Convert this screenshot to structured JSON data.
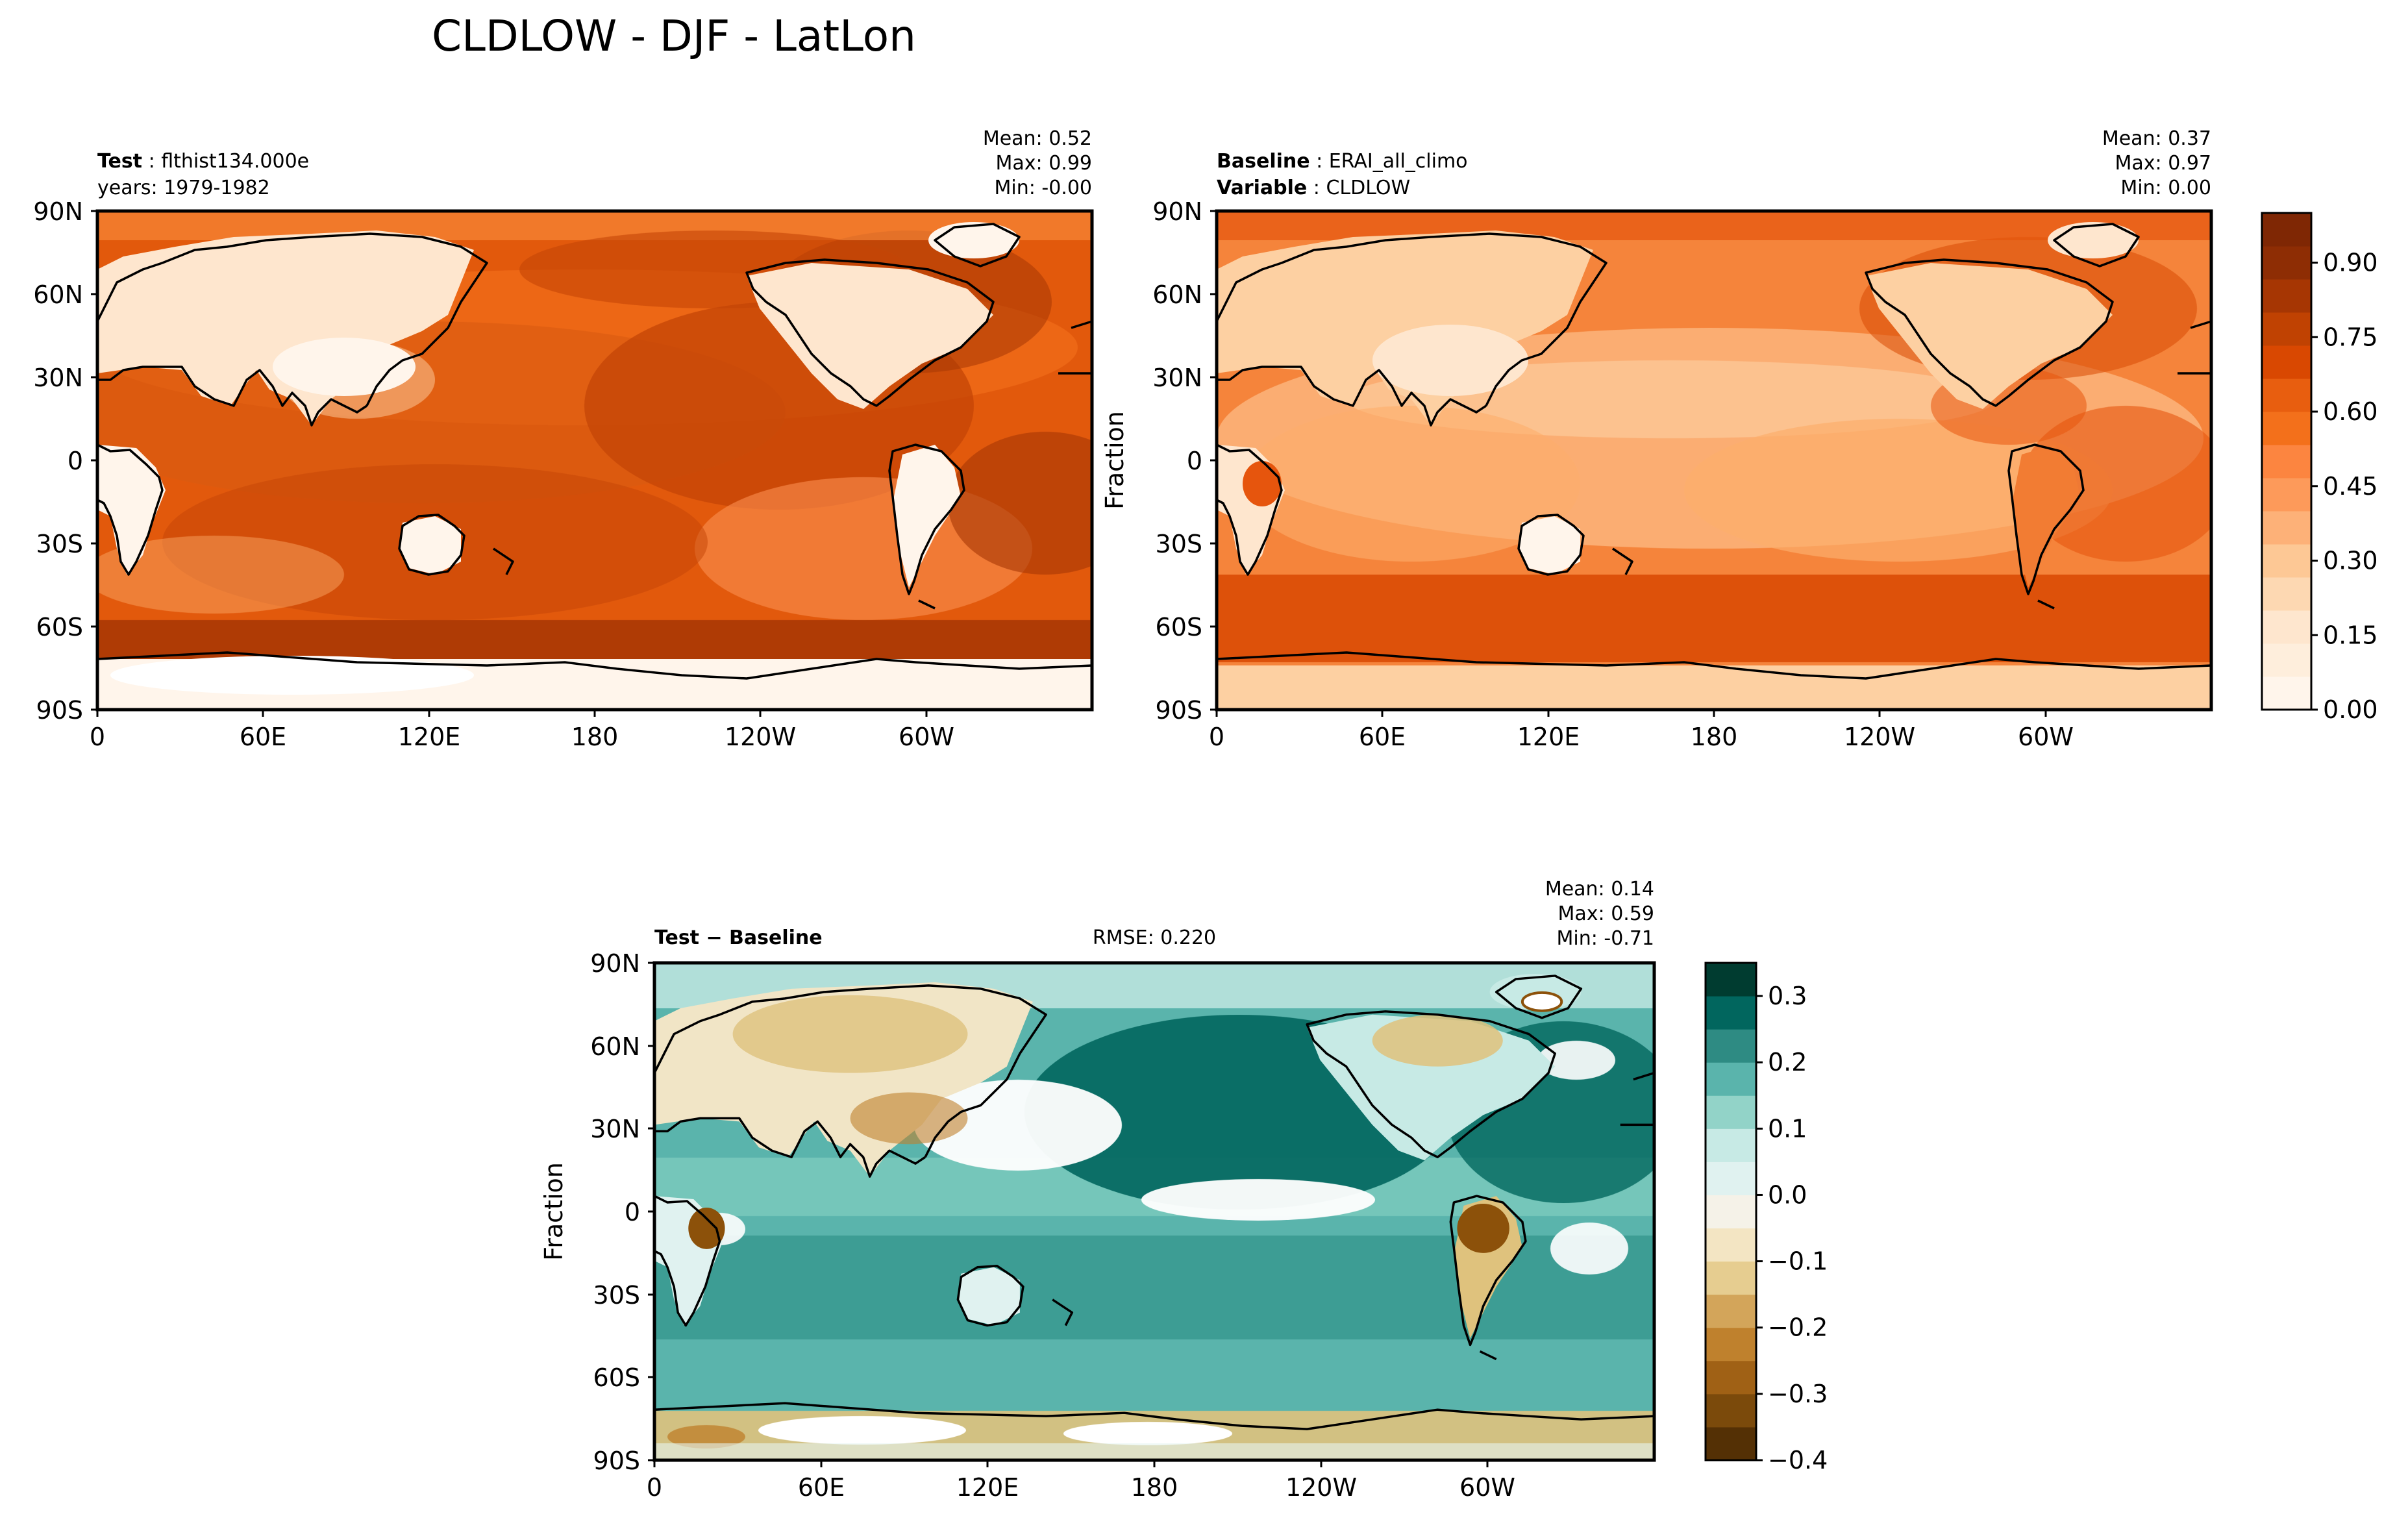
{
  "figure_title": "CLDLOW - DJF - LatLon",
  "lon_ticks": [
    "0",
    "60E",
    "120E",
    "180",
    "120W",
    "60W"
  ],
  "lat_ticks": [
    "90N",
    "60N",
    "30N",
    "0",
    "30S",
    "60S",
    "90S"
  ],
  "test": {
    "label_bold": "Test",
    "label_value": "flthist134.000e",
    "years": "years: 1979-1982",
    "stats": [
      "Mean:  0.52",
      "Max:  0.99",
      "Min: -0.00"
    ]
  },
  "baseline": {
    "label_bold": "Baseline",
    "label_value": "ERAI_all_climo",
    "variable_bold": "Variable",
    "variable_value": "CLDLOW",
    "ylabel": "Fraction",
    "stats": [
      "Mean:  0.37",
      "Max:  0.97",
      "Min:  0.00"
    ]
  },
  "diff": {
    "label_bold": "Test − Baseline",
    "rmse": "RMSE: 0.220",
    "ylabel": "Fraction",
    "stats": [
      "Mean:  0.14",
      "Max:  0.59",
      "Min: -0.71"
    ]
  },
  "colorbar_main": {
    "ticks": [
      "0.00",
      "0.15",
      "0.30",
      "0.45",
      "0.60",
      "0.75",
      "0.90"
    ],
    "colors": [
      "#fff5eb",
      "#feeedc",
      "#fee6ce",
      "#fdd8b2",
      "#fdc895",
      "#fdb178",
      "#fd9a5a",
      "#fc8540",
      "#f3701b",
      "#e85e0f",
      "#d94801",
      "#c04202",
      "#a63603",
      "#8e2d04",
      "#7f2704"
    ]
  },
  "colorbar_diff": {
    "ticks": [
      "0.3",
      "0.2",
      "0.1",
      "0.0",
      "−0.1",
      "−0.2",
      "−0.3",
      "−0.4"
    ],
    "colors": [
      "#543005",
      "#7b4a0b",
      "#a06115",
      "#bf812d",
      "#d3a55a",
      "#e6cd90",
      "#f3e5c3",
      "#f5f2e8",
      "#e0f2f0",
      "#c7eae5",
      "#92d3c8",
      "#5ab4ac",
      "#2e8b83",
      "#01665e",
      "#003c30"
    ]
  },
  "chart_data": [
    {
      "type": "heatmap",
      "title": "Test: flthist134.000e (years: 1979-1982)",
      "variable": "CLDLOW",
      "season": "DJF",
      "x_ticks": [
        "0",
        "60E",
        "120E",
        "180",
        "120W",
        "60W"
      ],
      "y_ticks": [
        "90N",
        "60N",
        "30N",
        "0",
        "30S",
        "60S",
        "90S"
      ],
      "xlim": [
        0,
        360
      ],
      "ylim": [
        -90,
        90
      ],
      "colorscale": "Oranges",
      "vmin": 0.0,
      "vmax": 1.0,
      "mean": 0.52,
      "max": 0.99,
      "min": -0.0
    },
    {
      "type": "heatmap",
      "title": "Baseline: ERAI_all_climo",
      "variable": "CLDLOW",
      "season": "DJF",
      "ylabel": "Fraction",
      "x_ticks": [
        "0",
        "60E",
        "120E",
        "180",
        "120W",
        "60W"
      ],
      "y_ticks": [
        "90N",
        "60N",
        "30N",
        "0",
        "30S",
        "60S",
        "90S"
      ],
      "xlim": [
        0,
        360
      ],
      "ylim": [
        -90,
        90
      ],
      "colorscale": "Oranges",
      "vmin": 0.0,
      "vmax": 1.0,
      "mean": 0.37,
      "max": 0.97,
      "min": 0.0
    },
    {
      "type": "heatmap",
      "title": "Test − Baseline",
      "variable": "CLDLOW",
      "season": "DJF",
      "ylabel": "Fraction",
      "rmse": 0.22,
      "x_ticks": [
        "0",
        "60E",
        "120E",
        "180",
        "120W",
        "60W"
      ],
      "y_ticks": [
        "90N",
        "60N",
        "30N",
        "0",
        "30S",
        "60S",
        "90S"
      ],
      "xlim": [
        0,
        360
      ],
      "ylim": [
        -90,
        90
      ],
      "colorscale": "BrBG",
      "vmin": -0.4,
      "vmax": 0.35,
      "mean": 0.14,
      "max": 0.59,
      "min": -0.71
    }
  ]
}
